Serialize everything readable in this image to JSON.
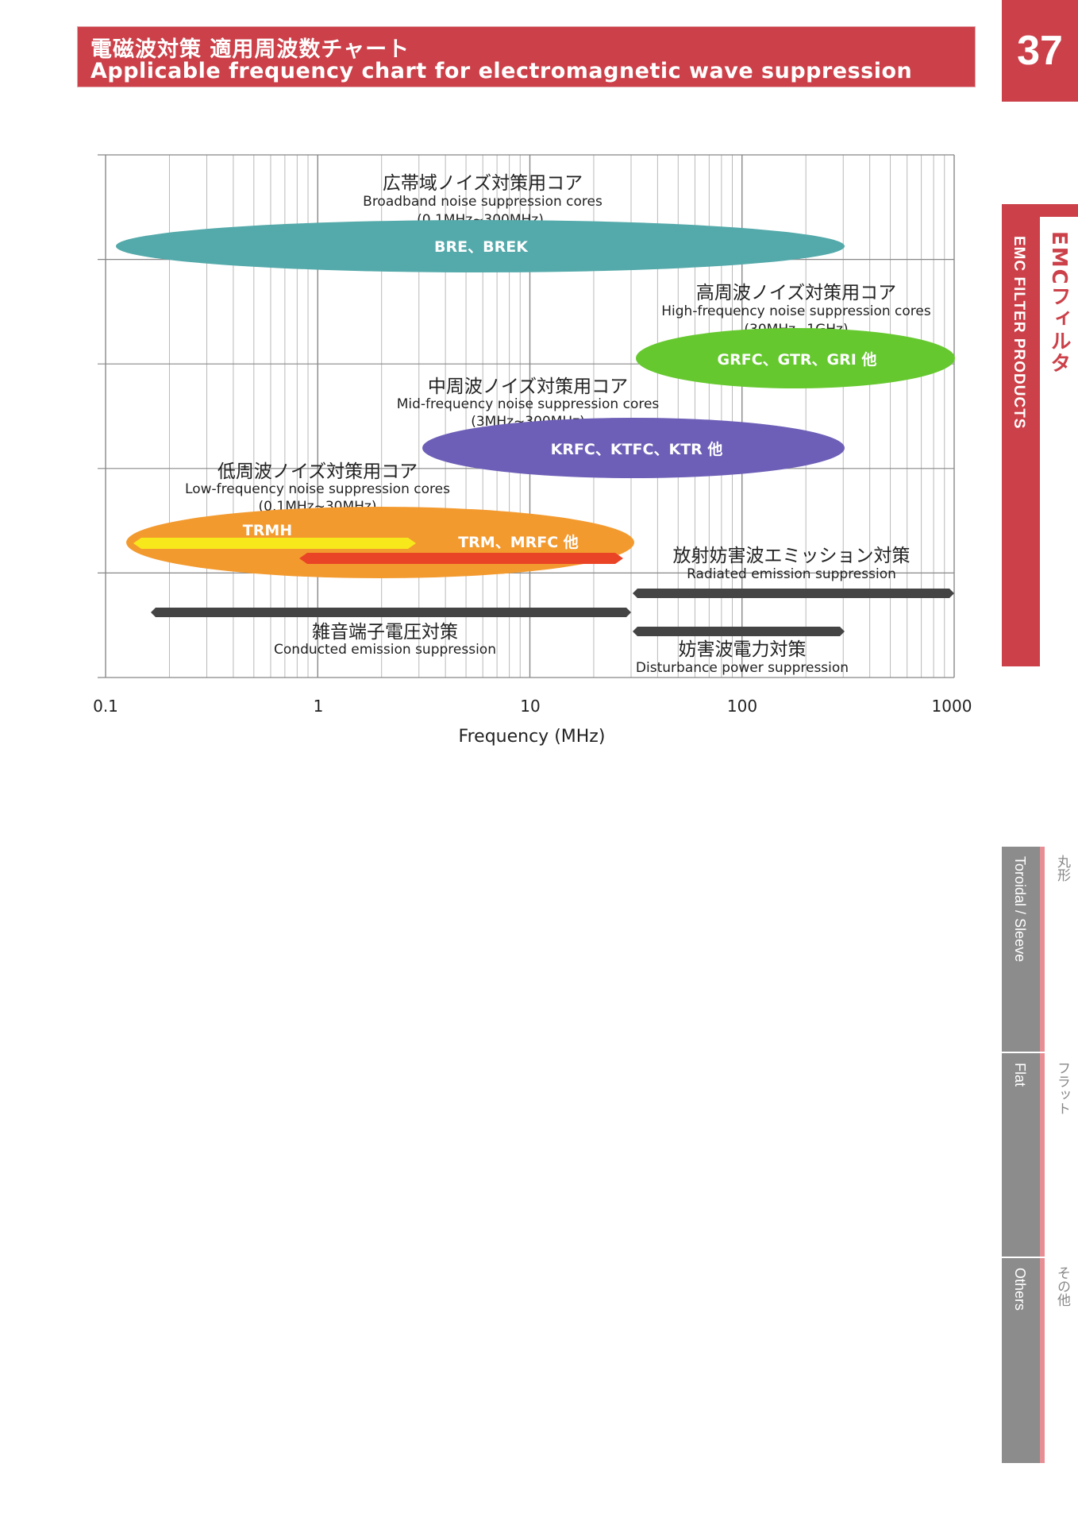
{
  "header": {
    "title_jp": "電磁波対策 適用周波数チャート",
    "title_en": "Applicable frequency chart for electromagnetic wave suppression",
    "page_number": "37"
  },
  "side": {
    "section_en": "EMC FILTER PRODUCTS",
    "section_jp": "EMCフィルタ",
    "tabs": [
      {
        "en": "Toroidal / Sleeve",
        "jp": "丸形"
      },
      {
        "en": "Flat",
        "jp": "フラット"
      },
      {
        "en": "Others",
        "jp": "その他"
      }
    ]
  },
  "colors": {
    "brand_red": "#cc4049",
    "broadband": "#54a9aa",
    "high": "#66c82f",
    "mid": "#6d5fb7",
    "low": "#f39a2f",
    "trmh": "#f7e81c",
    "trm": "#ea4426",
    "bar": "#444444"
  },
  "chart_data": {
    "type": "range",
    "xlabel": "Frequency (MHz)",
    "x_scale": "log",
    "xlim": [
      0.1,
      1000
    ],
    "x_ticks": [
      "0.1",
      "1",
      "10",
      "100",
      "1000"
    ],
    "ellipses": [
      {
        "title_jp": "広帯域ノイズ対策用コア",
        "title_en": "Broadband noise suppression cores",
        "range_text": "(0.1MHz~300MHz)",
        "products": "BRE、BREK",
        "from": 0.1,
        "to": 300,
        "color": "#54a9aa"
      },
      {
        "title_jp": "高周波ノイズ対策用コア",
        "title_en": "High-frequency noise suppression cores",
        "range_text": "(30MHz~1GHz)",
        "products": "GRFC、GTR、GRI 他",
        "from": 30,
        "to": 1000,
        "color": "#66c82f"
      },
      {
        "title_jp": "中周波ノイズ対策用コア",
        "title_en": "Mid-frequency noise suppression cores",
        "range_text": "(3MHz~300MHz)",
        "products": "KRFC、KTFC、KTR 他",
        "from": 3,
        "to": 300,
        "color": "#6d5fb7"
      },
      {
        "title_jp": "低周波ノイズ対策用コア",
        "title_en": "Low-frequency noise suppression cores",
        "range_text": "(0.1MHz~30MHz)",
        "products": "",
        "from": 0.1,
        "to": 30,
        "color": "#f39a2f"
      }
    ],
    "sub_bars": [
      {
        "label": "TRMH",
        "from": 0.12,
        "to": 3,
        "color": "#f7e81c"
      },
      {
        "label": "TRM、MRFC 他",
        "from": 0.8,
        "to": 25,
        "color": "#ea4426"
      }
    ],
    "bars": [
      {
        "label_jp": "放射妨害波エミッション対策",
        "label_en": "Radiated emission suppression",
        "from": 30,
        "to": 1000
      },
      {
        "label_jp": "雑音端子電圧対策",
        "label_en": "Conducted emission suppression",
        "from": 0.15,
        "to": 30
      },
      {
        "label_jp": "妨害波電力対策",
        "label_en": "Disturbance power suppression",
        "from": 30,
        "to": 300
      }
    ]
  }
}
